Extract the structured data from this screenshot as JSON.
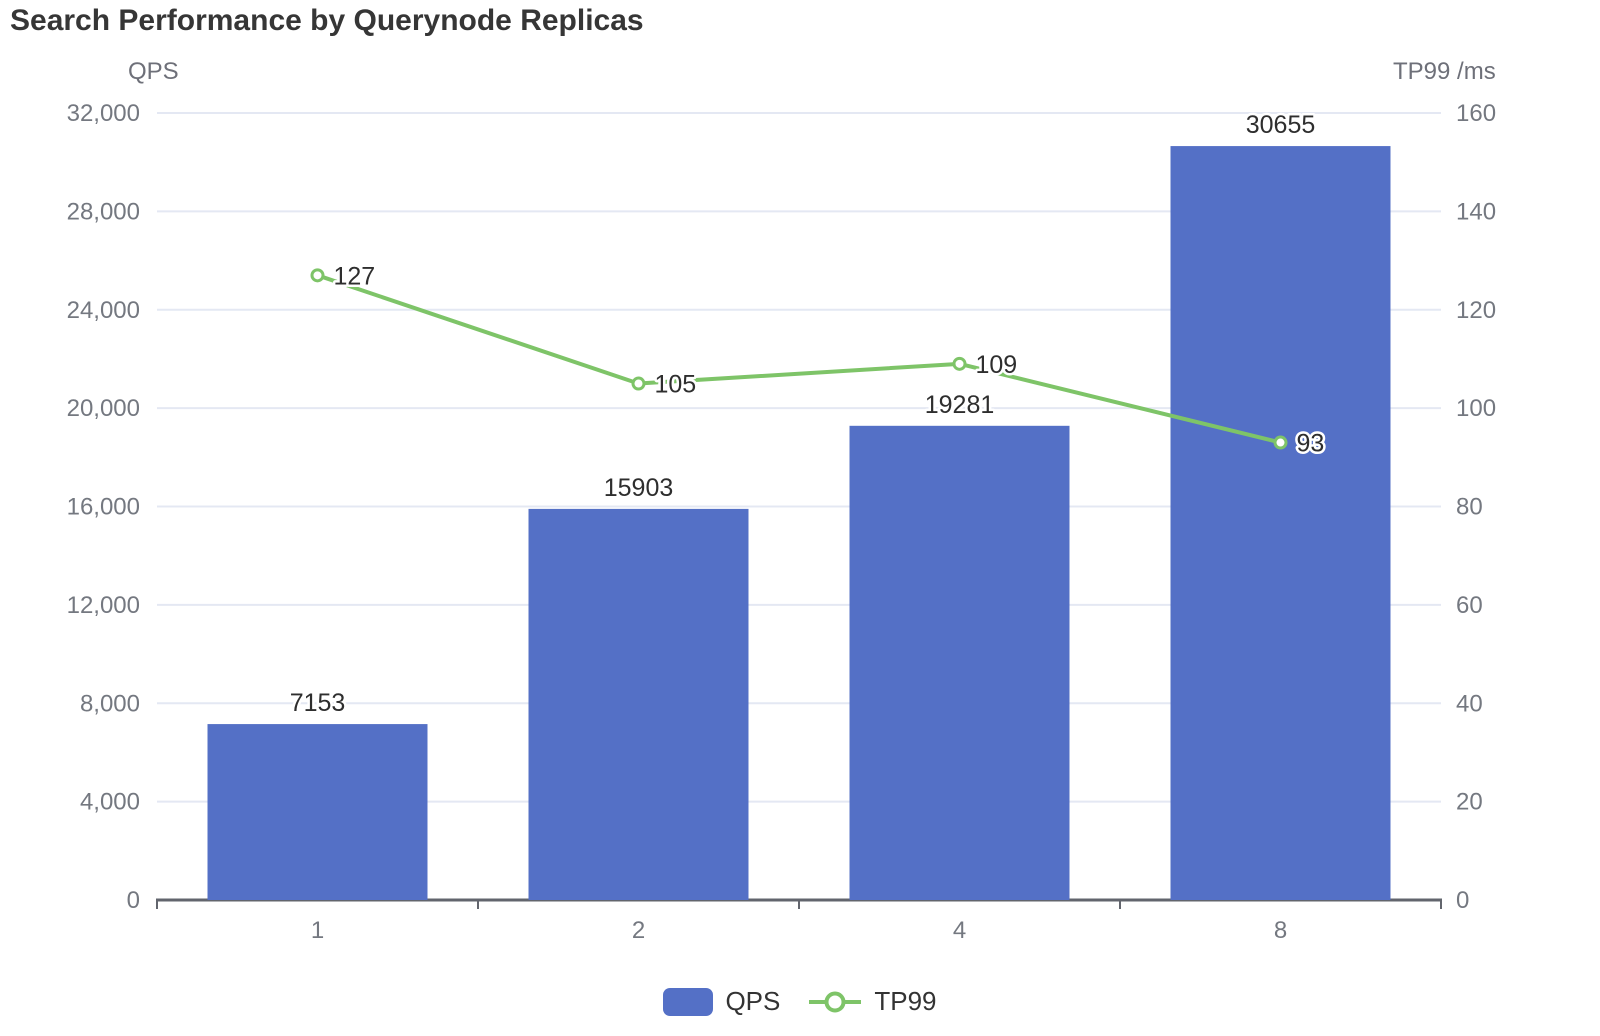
{
  "title": "Search Performance by Querynode Replicas",
  "colors": {
    "bar": "#5470C6",
    "line": "#7EC468",
    "grid": "#E4E8F3",
    "axis": "#62656D",
    "tick_label": "#747880",
    "value_label": "#2E2E2E",
    "title_color": "#363636"
  },
  "chart_data": {
    "type": "combo",
    "title": "Search Performance by Querynode Replicas",
    "categories": [
      "1",
      "2",
      "4",
      "8"
    ],
    "series": [
      {
        "name": "QPS",
        "type": "bar",
        "axis": "left",
        "values": [
          7153,
          15903,
          19281,
          30655
        ],
        "labels": [
          "7153",
          "15903",
          "19281",
          "30655"
        ],
        "color": "#5470C6"
      },
      {
        "name": "TP99",
        "type": "line",
        "axis": "right",
        "values": [
          127,
          105,
          109,
          93
        ],
        "labels": [
          "127",
          "105",
          "109",
          "93"
        ],
        "color": "#7EC468"
      }
    ],
    "left_axis": {
      "name": "QPS",
      "min": 0,
      "max": 32000,
      "step": 4000,
      "tick_labels": [
        "0",
        "4,000",
        "8,000",
        "12,000",
        "16,000",
        "20,000",
        "24,000",
        "28,000",
        "32,000"
      ]
    },
    "right_axis": {
      "name": "TP99 /ms",
      "min": 0,
      "max": 160,
      "step": 20,
      "tick_labels": [
        "0",
        "20",
        "40",
        "60",
        "80",
        "100",
        "120",
        "140",
        "160"
      ]
    },
    "xlabel": "",
    "grid": "horizontal",
    "legend_position": "bottom"
  },
  "legend": {
    "items": [
      {
        "label": "QPS",
        "type": "bar"
      },
      {
        "label": "TP99",
        "type": "line"
      }
    ]
  }
}
